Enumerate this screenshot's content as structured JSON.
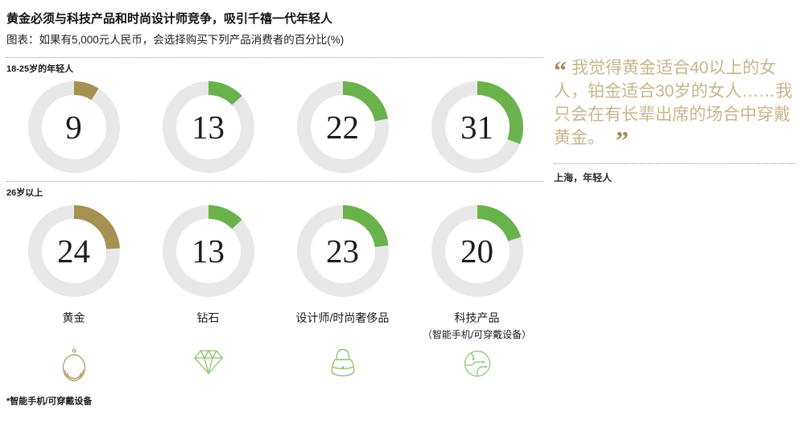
{
  "header": {
    "title": "黄金必须与科技产品和时尚设计师竞争，吸引千禧一代年轻人",
    "subtitle": "图表：如果有5,000元人民币，会选择购买下列产品消费者的百分比(%)"
  },
  "chart_data": {
    "type": "donut",
    "unit": "%",
    "track_color": "#e8e8e8",
    "categories": [
      {
        "label": "黄金",
        "sublabel": "",
        "icon": "necklace-icon",
        "color": "#a69150"
      },
      {
        "label": "钻石",
        "sublabel": "",
        "icon": "diamond-icon",
        "color": "#6ab24c"
      },
      {
        "label": "设计师/时尚奢侈品",
        "sublabel": "",
        "icon": "handbag-icon",
        "color": "#6ab24c"
      },
      {
        "label": "科技产品",
        "sublabel": "（智能手机/可穿戴设备）",
        "icon": "smartwatch-circuit-icon",
        "color": "#6ab24c"
      }
    ],
    "series": [
      {
        "name": "18-25岁的年轻人",
        "values": [
          9,
          13,
          22,
          31
        ]
      },
      {
        "name": "26岁以上",
        "values": [
          24,
          13,
          23,
          20
        ]
      }
    ]
  },
  "quote": {
    "open_mark": "“",
    "close_mark": "”",
    "text": "我觉得黄金适合40以上的女人，铂金适合30岁的女人……我只会在有长辈出席的场合中穿戴黄金。",
    "attribution": "上海，年轻人"
  },
  "footnote": "*智能手机/可穿戴设备"
}
